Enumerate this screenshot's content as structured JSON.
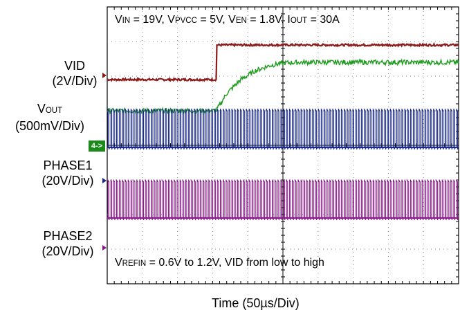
{
  "chart_data": {
    "type": "line",
    "title_parts": {
      "vin_label": "V",
      "vin_sub": "IN",
      "vin_value": " = 19V, ",
      "pvcc_label": "V",
      "pvcc_sub": "PVCC",
      "pvcc_value": " = 5V, ",
      "en_label": "V",
      "en_sub": "EN",
      "en_value": " = 1.8V, ",
      "iout_label": "I",
      "iout_sub": "OUT",
      "iout_value": " = 30A"
    },
    "annotation_parts": {
      "refin_label": "V",
      "refin_sub": "REFIN",
      "refin_text": " = 0.6V to 1.2V, VID from low to high"
    },
    "xlabel": "Time (50µs/Div)",
    "x_divisions": 10,
    "y_divisions": 8,
    "x_per_div_us": 50,
    "series": [
      {
        "name": "VID",
        "scale": "(2V/Div)",
        "color": "#8b1a1a",
        "x": [
          0,
          3.1,
          3.1,
          10
        ],
        "y": [
          5.9,
          5.9,
          6.9,
          6.9
        ]
      },
      {
        "name": "V",
        "name_sub": "OUT",
        "scale": "(500mV/Div)",
        "color": "#1f9b1f",
        "x": [
          0,
          3.1,
          3.4,
          3.8,
          4.2,
          4.6,
          5.0,
          5.5,
          10
        ],
        "y": [
          5.0,
          5.0,
          5.5,
          5.9,
          6.15,
          6.3,
          6.38,
          6.4,
          6.4
        ]
      },
      {
        "name": "PHASE1",
        "scale": "(20V/Div)",
        "color": "#1a2a8a",
        "waveform": "switching",
        "low": 3.94,
        "high": 5.0,
        "period_div": 0.082
      },
      {
        "name": "PHASE2",
        "scale": "(20V/Div)",
        "color": "#8a1a8a",
        "waveform": "switching",
        "low": 1.9,
        "high": 2.95,
        "period_div": 0.082
      }
    ],
    "channel_badge": "4->"
  },
  "colors": {
    "grid": "#888888",
    "axes": "#000000",
    "badge": "#1a8a1a"
  }
}
